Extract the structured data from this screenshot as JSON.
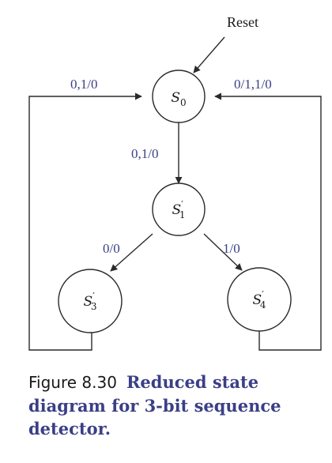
{
  "colors": {
    "label": "#3b3f86",
    "line": "#2a2a2a"
  },
  "diagram": {
    "reset_label": "Reset",
    "states": [
      {
        "id": "S0",
        "base": "S",
        "prime": "",
        "sub": "0"
      },
      {
        "id": "S1p",
        "base": "S",
        "prime": "′",
        "sub": "1"
      },
      {
        "id": "S3p",
        "base": "S",
        "prime": "′",
        "sub": "3"
      },
      {
        "id": "S4p",
        "base": "S",
        "prime": "′",
        "sub": "4"
      }
    ],
    "transitions": [
      {
        "from": "S3p",
        "to": "S0",
        "label": "0,1/0"
      },
      {
        "from": "S4p",
        "to": "S0",
        "label": "0/1,1/0"
      },
      {
        "from": "S0",
        "to": "S1p",
        "label": "0,1/0"
      },
      {
        "from": "S1p",
        "to": "S3p",
        "label": "0/0"
      },
      {
        "from": "S1p",
        "to": "S4p",
        "label": "1/0"
      }
    ]
  },
  "caption": {
    "figure_number": "Figure 8.30",
    "text": "Reduced state diagram for 3-bit sequence detector."
  }
}
